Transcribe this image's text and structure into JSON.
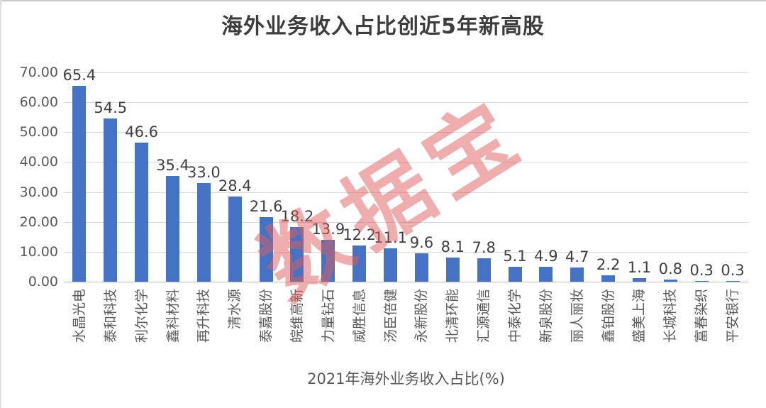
{
  "watermark": {
    "text": "数据宝",
    "color": "#E05D5D"
  },
  "chart_data": {
    "type": "bar",
    "title": "海外业务收入占比创近5年新高股",
    "xlabel": "2021年海外业务收入占比(%)",
    "ylabel": "",
    "ylim": [
      0,
      70
    ],
    "ytick_step": 10,
    "ytick_labels": [
      "70.00",
      "60.00",
      "50.00",
      "40.00",
      "30.00",
      "20.00",
      "10.00",
      "0.00"
    ],
    "grid": true,
    "legend": false,
    "bar_color": "#4472C4",
    "gridline_color": "#d9d9d9",
    "categories": [
      "水晶光电",
      "泰和科技",
      "利尔化学",
      "鑫科材料",
      "再升科技",
      "清水源",
      "泰嘉股份",
      "皖维高新",
      "力量钻石",
      "威胜信息",
      "汤臣倍健",
      "永新股份",
      "北清环能",
      "汇源通信",
      "中泰化学",
      "新泉股份",
      "丽人丽妆",
      "鑫铂股份",
      "盛美上海",
      "长城科技",
      "富春染织",
      "平安银行"
    ],
    "values": [
      65.4,
      54.5,
      46.6,
      35.4,
      33.0,
      28.4,
      21.6,
      18.2,
      13.9,
      12.2,
      11.1,
      9.6,
      8.1,
      7.8,
      5.1,
      4.9,
      4.7,
      2.2,
      1.1,
      0.8,
      0.3,
      0.3
    ]
  }
}
